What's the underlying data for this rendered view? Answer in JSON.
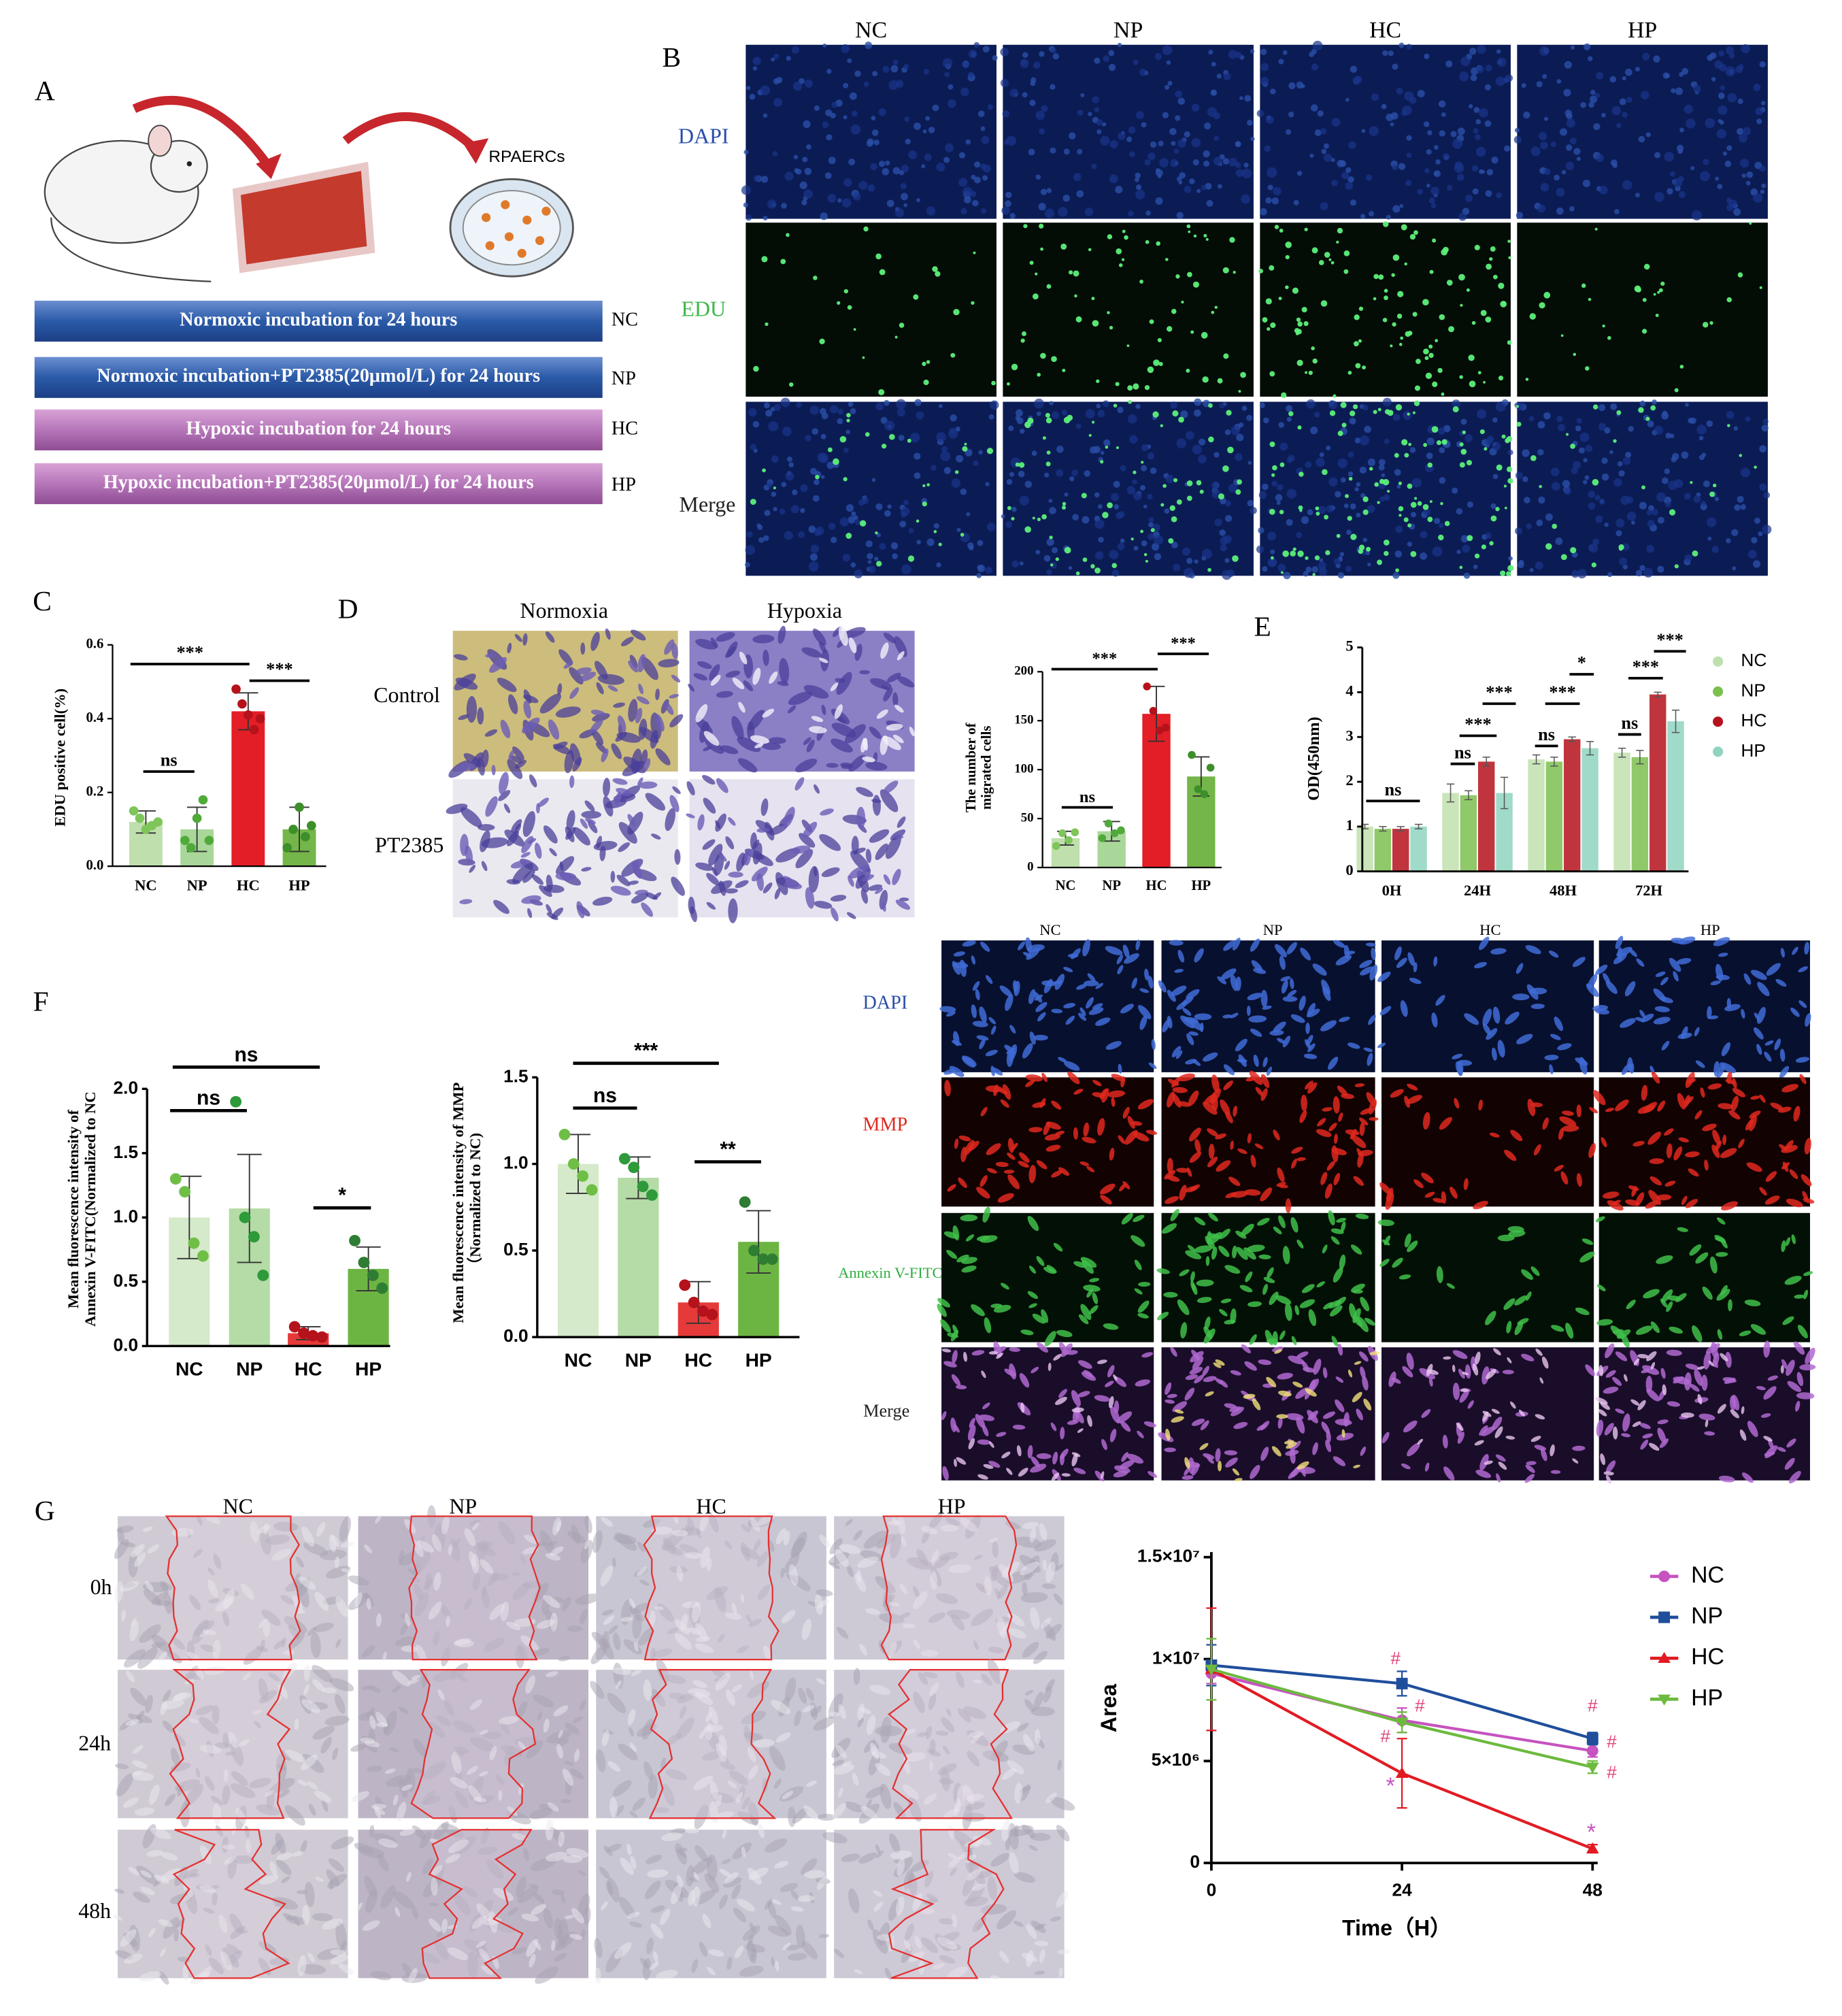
{
  "panel_labels": [
    "A",
    "B",
    "C",
    "D",
    "E",
    "F",
    "G"
  ],
  "panel_a": {
    "cell_label": "RPAERCs",
    "conditions": [
      {
        "text": "Normoxic incubation for 24 hours",
        "group": "NC"
      },
      {
        "text": "Normoxic incubation+PT2385(20μmol/L) for 24 hours",
        "group": "NP"
      },
      {
        "text": "Hypoxic incubation for 24 hours",
        "group": "HC"
      },
      {
        "text": "Hypoxic incubation+PT2385(20μmol/L) for 24 hours",
        "group": "HP"
      }
    ]
  },
  "panel_b": {
    "columns": [
      "NC",
      "NP",
      "HC",
      "HP"
    ],
    "rows": [
      "DAPI",
      "EDU",
      "Merge"
    ]
  },
  "panel_d_images": {
    "columns": [
      "Normoxia",
      "Hypoxia"
    ],
    "rows": [
      "Control",
      "PT2385"
    ]
  },
  "panel_f_images": {
    "columns": [
      "NC",
      "NP",
      "HC",
      "HP"
    ],
    "rows": [
      "DAPI",
      "MMP",
      "Annexin V-FITC",
      "Merge"
    ]
  },
  "panel_g_images": {
    "columns": [
      "NC",
      "NP",
      "HC",
      "HP"
    ],
    "rows": [
      "0h",
      "24h",
      "48h"
    ]
  },
  "chart_data": [
    {
      "type": "bar",
      "y_label": [
        "EDU positive cell(%)"
      ],
      "categories": [
        "NC",
        "NP",
        "HC",
        "HP"
      ],
      "values": [
        0.12,
        0.1,
        0.42,
        0.1
      ],
      "errors": [
        0.03,
        0.06,
        0.05,
        0.06
      ],
      "points": [
        [
          0.15,
          0.13,
          0.1,
          0.11,
          0.12
        ],
        [
          0.07,
          0.05,
          0.13,
          0.18,
          0.07
        ],
        [
          0.48,
          0.44,
          0.41,
          0.37,
          0.4
        ],
        [
          0.05,
          0.1,
          0.16,
          0.08,
          0.11
        ]
      ],
      "colors": [
        "#bfe0ad",
        "#a9d79a",
        "#e41e26",
        "#74b649"
      ],
      "point_colors": [
        "#7ec55a",
        "#4faa3a",
        "#b5121b",
        "#3d8f2a"
      ],
      "ylim": [
        0,
        0.6
      ],
      "yticks": [
        {
          "value": 0,
          "label": "0.0"
        },
        0.2,
        0.4,
        0.6
      ],
      "annotations": [
        "***",
        "***",
        "ns"
      ]
    },
    {
      "type": "bar",
      "y_label": [
        "The number of",
        "migrated cells"
      ],
      "categories": [
        "NC",
        "NP",
        "HC",
        "HP"
      ],
      "values": [
        30,
        37,
        157,
        93
      ],
      "errors": [
        7,
        10,
        28,
        20
      ],
      "points": [
        [
          22,
          35,
          28,
          36
        ],
        [
          30,
          45,
          35,
          38
        ],
        [
          185,
          160,
          140,
          143
        ],
        [
          115,
          80,
          75,
          102
        ]
      ],
      "colors": [
        "#bfe0ad",
        "#a9d79a",
        "#e41e26",
        "#74b649"
      ],
      "point_colors": [
        "#7ec55a",
        "#4faa3a",
        "#b5121b",
        "#3d8f2a"
      ],
      "ylim": [
        0,
        200
      ],
      "yticks": [
        0,
        50,
        100,
        150,
        200
      ],
      "annotations": [
        "***",
        "***",
        "ns"
      ]
    },
    {
      "type": "grouped_bar",
      "y_label": [
        "OD(450nm)"
      ],
      "categories": [
        "0H",
        "24H",
        "48H",
        "72H"
      ],
      "series": [
        {
          "name": "NC",
          "color": "#bfe0ad",
          "values": [
            1.0,
            1.75,
            2.5,
            2.65
          ],
          "errors": [
            0.05,
            0.2,
            0.1,
            0.1
          ]
        },
        {
          "name": "NP",
          "color": "#7bbf4f",
          "values": [
            0.95,
            1.7,
            2.45,
            2.55
          ],
          "errors": [
            0.05,
            0.1,
            0.1,
            0.15
          ]
        },
        {
          "name": "HC",
          "color": "#b5121b",
          "values": [
            0.95,
            2.45,
            2.95,
            3.95
          ],
          "errors": [
            0.05,
            0.1,
            0.05,
            0.05
          ]
        },
        {
          "name": "HP",
          "color": "#8fd3c0",
          "values": [
            1.0,
            1.75,
            2.75,
            3.35
          ],
          "errors": [
            0.05,
            0.35,
            0.15,
            0.25
          ]
        }
      ],
      "ylim": [
        0,
        5
      ],
      "yticks": [
        0,
        1,
        2,
        3,
        4,
        5
      ],
      "legend": "right",
      "annotations": [
        "ns",
        "ns",
        "***",
        "***",
        "ns",
        "***",
        "*",
        "ns",
        "***",
        "***"
      ]
    },
    {
      "type": "bar",
      "y_label": [
        "Mean fluorescence intensity of",
        "Annexin V-FITC(Normalized to NC"
      ],
      "categories": [
        "NC",
        "NP",
        "HC",
        "HP"
      ],
      "values": [
        1.0,
        1.07,
        0.1,
        0.6
      ],
      "errors": [
        0.32,
        0.42,
        0.05,
        0.17
      ],
      "points": [
        [
          1.3,
          1.2,
          0.8,
          0.7
        ],
        [
          1.9,
          1.0,
          0.85,
          0.55
        ],
        [
          0.15,
          0.1,
          0.08,
          0.07
        ],
        [
          0.82,
          0.65,
          0.55,
          0.45
        ]
      ],
      "colors": [
        "#d5eacb",
        "#b5dba6",
        "#e63a3a",
        "#6db543"
      ],
      "point_colors": [
        "#6fbf46",
        "#2e9a3a",
        "#b5121b",
        "#2e7d32"
      ],
      "ylim": [
        0,
        2
      ],
      "yticks": [
        {
          "value": 0,
          "label": "0.0"
        },
        0.5,
        {
          "value": 1,
          "label": "1.0"
        },
        1.5,
        {
          "value": 2,
          "label": "2.0"
        }
      ],
      "annotations": [
        "ns",
        "ns",
        "*"
      ]
    },
    {
      "type": "bar",
      "y_label": [
        "Mean fluorescence intensity of MMP",
        "（Normalized to NC)"
      ],
      "categories": [
        "NC",
        "NP",
        "HC",
        "HP"
      ],
      "values": [
        1.0,
        0.92,
        0.2,
        0.55
      ],
      "errors": [
        0.17,
        0.12,
        0.12,
        0.18
      ],
      "points": [
        [
          1.17,
          1.0,
          0.93,
          0.85
        ],
        [
          1.03,
          0.98,
          0.87,
          0.82
        ],
        [
          0.3,
          0.2,
          0.15,
          0.13
        ],
        [
          0.78,
          0.5,
          0.45,
          0.45
        ]
      ],
      "colors": [
        "#d5eacb",
        "#b5dba6",
        "#e63a3a",
        "#6db543"
      ],
      "point_colors": [
        "#6fbf46",
        "#2e9a3a",
        "#b5121b",
        "#2e7d32"
      ],
      "ylim": [
        0,
        1.5
      ],
      "yticks": [
        {
          "value": 0,
          "label": "0.0"
        },
        0.5,
        {
          "value": 1,
          "label": "1.0"
        },
        1.5
      ],
      "annotations": [
        "***",
        "ns",
        "**"
      ]
    },
    {
      "type": "line",
      "x_label": "Time（H）",
      "y_label": [
        "Area"
      ],
      "x": [
        0,
        24,
        48
      ],
      "series": [
        {
          "name": "NC",
          "color": "#c653c0",
          "marker": "circle",
          "values": [
            9300000,
            7000000,
            5500000
          ],
          "errors": [
            500000,
            600000,
            300000
          ]
        },
        {
          "name": "NP",
          "color": "#1f4e9c",
          "marker": "square",
          "values": [
            9700000,
            8800000,
            6100000
          ],
          "errors": [
            1000000,
            600000,
            300000
          ]
        },
        {
          "name": "HC",
          "color": "#e21b23",
          "marker": "triangle",
          "values": [
            9500000,
            4400000,
            700000
          ],
          "errors": [
            3000000,
            1700000,
            200000
          ]
        },
        {
          "name": "HP",
          "color": "#6cba3e",
          "marker": "triangle-down",
          "values": [
            9500000,
            6900000,
            4700000
          ],
          "errors": [
            1500000,
            500000,
            300000
          ]
        }
      ],
      "xlim": [
        0,
        48
      ],
      "xticks": [
        0,
        24,
        48
      ],
      "ylim": [
        0,
        15000000
      ],
      "yticks": [
        0,
        {
          "value": 5000000,
          "label": "5×10⁶"
        },
        {
          "value": 10000000,
          "label": "1×10⁷"
        },
        {
          "value": 15000000,
          "label": "1.5×10⁷"
        }
      ],
      "legend": "right",
      "annotations": [
        {
          "text": "#",
          "color": "#e0457b"
        },
        {
          "text": "#",
          "color": "#e0457b"
        },
        {
          "text": "#",
          "color": "#e0457b"
        },
        {
          "text": "*",
          "color": "#c653c0"
        },
        {
          "text": "#",
          "color": "#e0457b"
        },
        {
          "text": "#",
          "color": "#e0457b"
        },
        {
          "text": "#",
          "color": "#e0457b"
        },
        {
          "text": "*",
          "color": "#c653c0"
        }
      ]
    }
  ]
}
